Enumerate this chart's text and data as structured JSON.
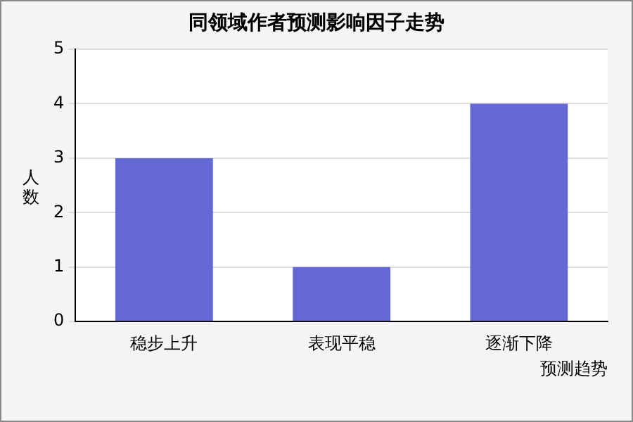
{
  "chart_data": {
    "type": "bar",
    "title": "同领域作者预测影响因子走势",
    "xlabel": "预测趋势",
    "ylabel": "人数",
    "categories": [
      "稳步上升",
      "表现平稳",
      "逐渐下降"
    ],
    "values": [
      3,
      1,
      4
    ],
    "color": "#6468d4",
    "ylim": [
      0,
      5
    ],
    "yticks": [
      0,
      1,
      2,
      3,
      4,
      5
    ],
    "grid": "y"
  }
}
